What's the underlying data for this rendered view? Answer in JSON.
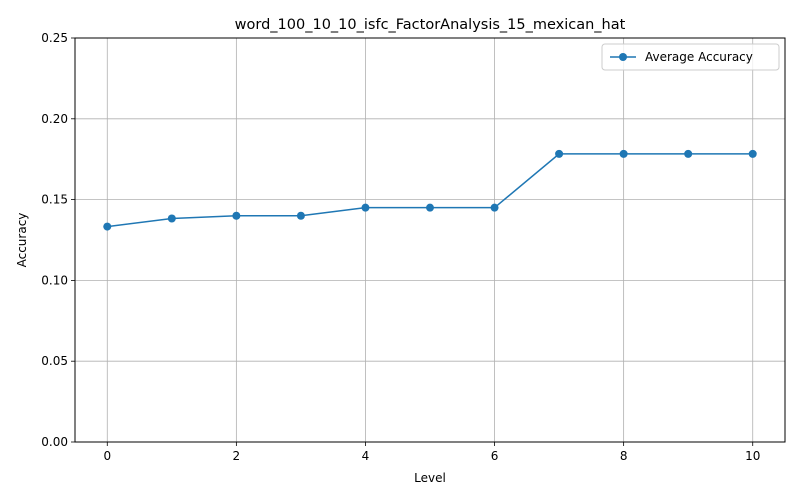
{
  "chart_data": {
    "type": "line",
    "title": "word_100_10_10_isfc_FactorAnalysis_15_mexican_hat",
    "xlabel": "Level",
    "ylabel": "Accuracy",
    "xlim": [
      -0.5,
      10.5
    ],
    "ylim": [
      0,
      0.25
    ],
    "xticks": [
      0,
      2,
      4,
      6,
      8,
      10
    ],
    "xtick_labels": [
      "0",
      "2",
      "4",
      "6",
      "8",
      "10"
    ],
    "yticks": [
      0,
      0.05,
      0.1,
      0.15,
      0.2,
      0.25
    ],
    "ytick_labels": [
      "0.00",
      "0.05",
      "0.10",
      "0.15",
      "0.20",
      "0.25"
    ],
    "grid": true,
    "legend_position": "top-right",
    "x": [
      0,
      1,
      2,
      3,
      4,
      5,
      6,
      7,
      8,
      9,
      10
    ],
    "series": [
      {
        "name": "Average Accuracy",
        "color": "#1f77b4",
        "marker": "circle",
        "values": [
          0.1333,
          0.1383,
          0.14,
          0.14,
          0.145,
          0.145,
          0.145,
          0.1783,
          0.1783,
          0.1783,
          0.1783
        ]
      }
    ]
  }
}
